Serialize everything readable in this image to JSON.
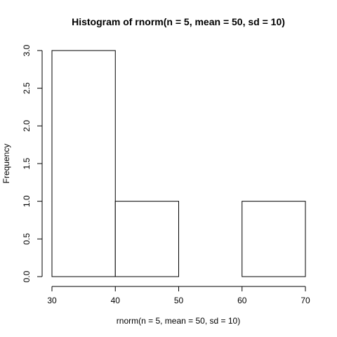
{
  "chart_data": {
    "type": "bar",
    "title": "Histogram of rnorm(n = 5, mean = 50, sd = 10)",
    "xlabel": "rnorm(n = 5, mean = 50, sd = 10)",
    "ylabel": "Frequency",
    "bins": [
      {
        "start": 30,
        "end": 40,
        "count": 3
      },
      {
        "start": 40,
        "end": 50,
        "count": 1
      },
      {
        "start": 50,
        "end": 60,
        "count": 0
      },
      {
        "start": 60,
        "end": 70,
        "count": 1
      }
    ],
    "xlim": [
      30,
      70
    ],
    "ylim": [
      0,
      3
    ],
    "x_ticks": [
      "30",
      "40",
      "50",
      "60",
      "70"
    ],
    "y_ticks": [
      "0.0",
      "0.5",
      "1.0",
      "1.5",
      "2.0",
      "2.5",
      "3.0"
    ],
    "grid": false,
    "bar_fill": "#ffffff",
    "bar_stroke": "#000000"
  }
}
